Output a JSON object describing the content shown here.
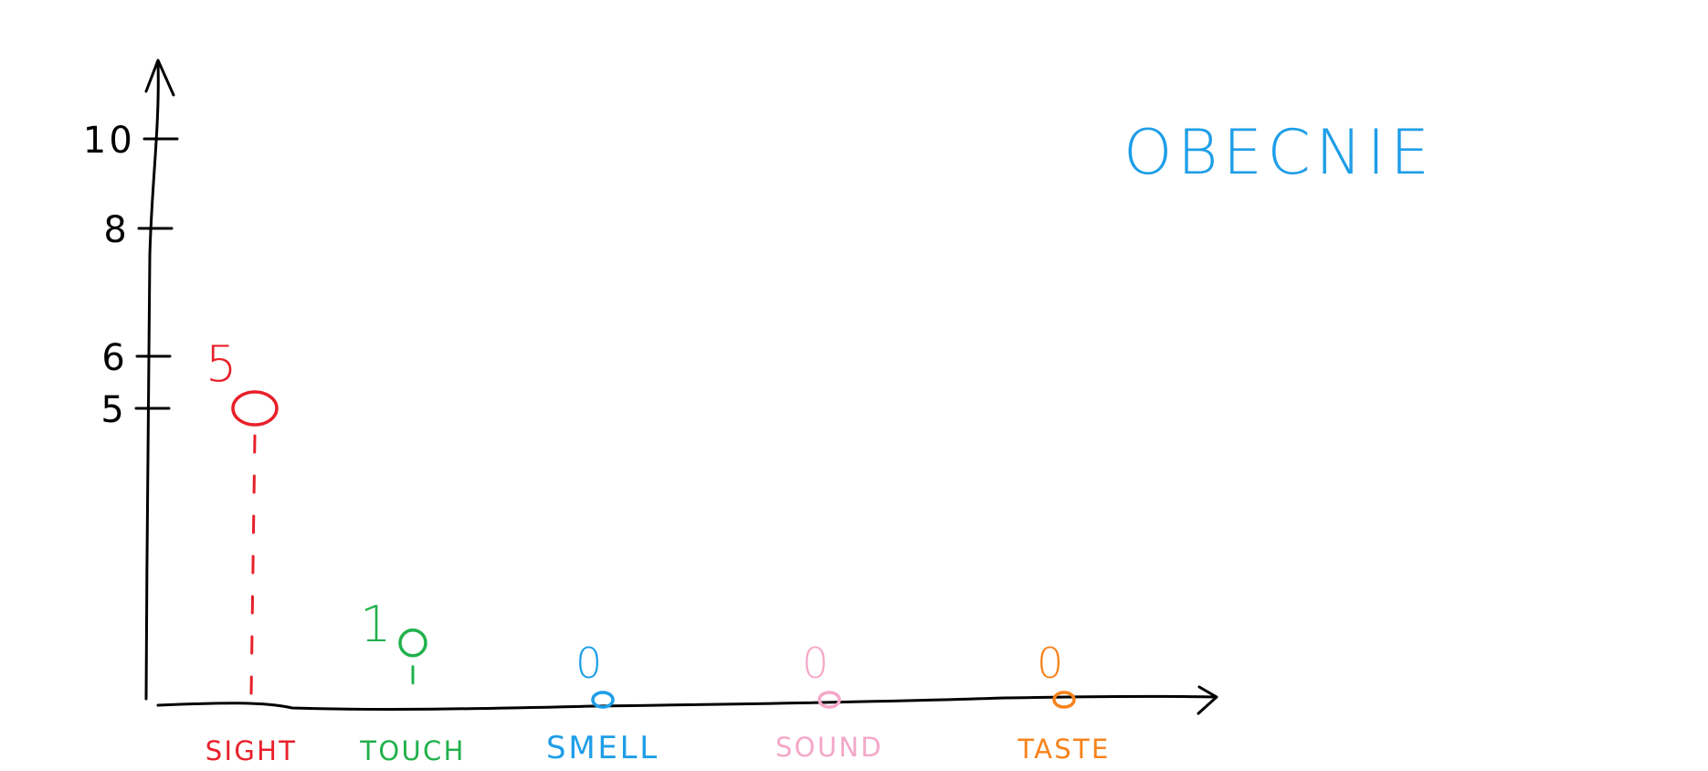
{
  "chart_data": {
    "type": "scatter",
    "title": "OBECNIE",
    "categories": [
      "SIGHT",
      "TOUCH",
      "SMELL",
      "SOUND",
      "TASTE"
    ],
    "values": [
      5,
      1,
      0,
      0,
      0
    ],
    "value_labels": [
      "5",
      "1",
      "0",
      "0",
      "0"
    ],
    "y_ticks": [
      "5",
      "6",
      "8",
      "10"
    ],
    "ylim": [
      0,
      11
    ],
    "grid": false,
    "colors": [
      "#e8202a",
      "#22b14c",
      "#1e9ee8",
      "#f4a8c8",
      "#f7821b"
    ],
    "axis_color": "#000000",
    "title_color": "#1e9ee8"
  }
}
